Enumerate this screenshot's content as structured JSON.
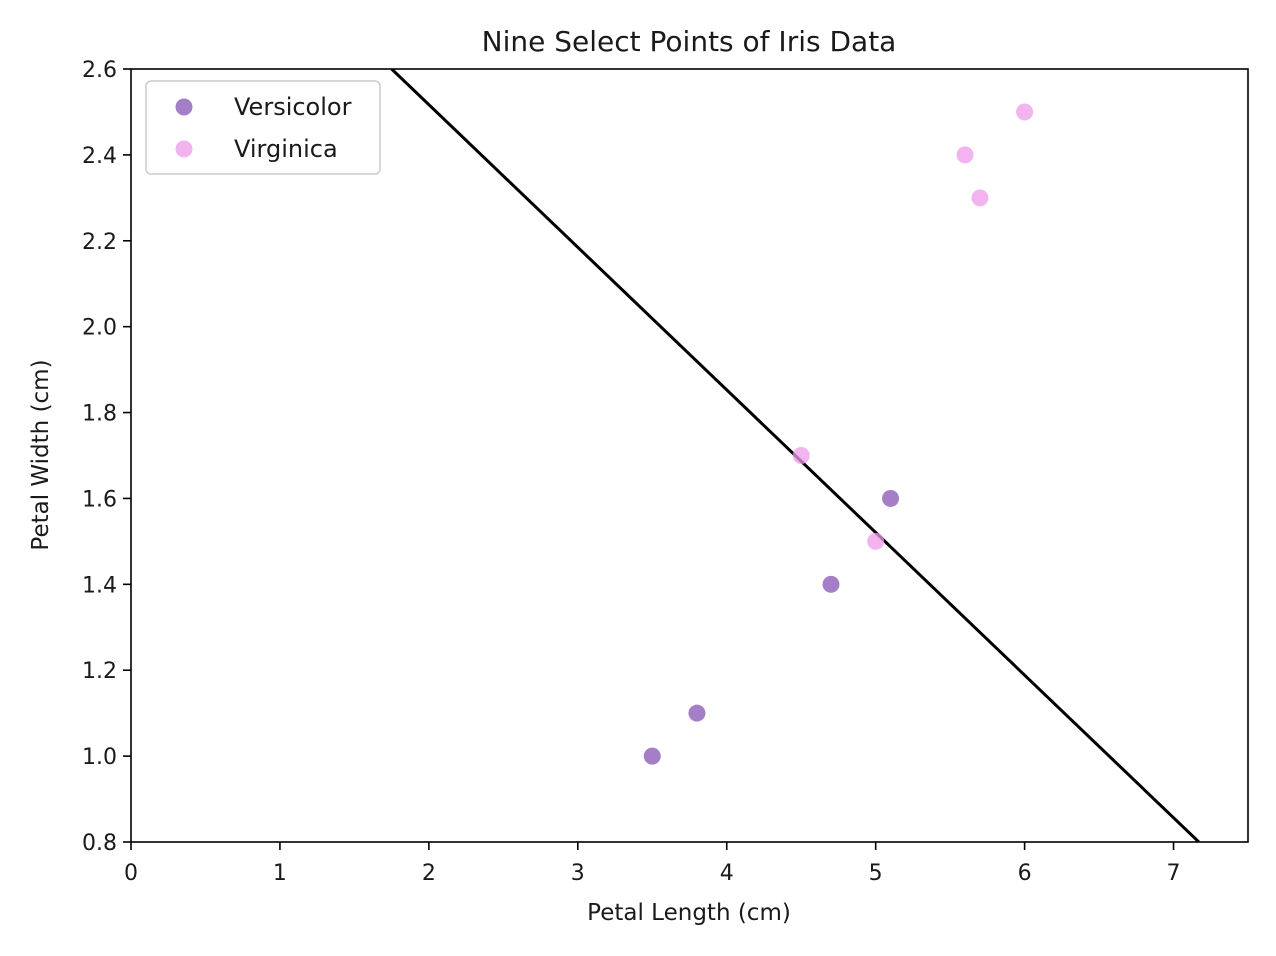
{
  "chart_data": {
    "type": "scatter",
    "title": "Nine Select Points of Iris Data",
    "xlabel": "Petal Length (cm)",
    "ylabel": "Petal Width (cm)",
    "xlim": [
      0,
      7.5
    ],
    "ylim": [
      0.8,
      2.6
    ],
    "xticks": [
      0,
      1,
      2,
      3,
      4,
      5,
      6,
      7
    ],
    "yticks": [
      "0.8",
      "1.0",
      "1.2",
      "1.4",
      "1.6",
      "1.8",
      "2.0",
      "2.2",
      "2.4",
      "2.6"
    ],
    "grid": false,
    "legend_position": "top-left",
    "series": [
      {
        "name": "Versicolor",
        "color": "#9467bd",
        "points": [
          [
            3.5,
            1.0
          ],
          [
            3.8,
            1.1
          ],
          [
            4.7,
            1.4
          ],
          [
            5.1,
            1.6
          ]
        ]
      },
      {
        "name": "Virginica",
        "color": "#ee9ae8",
        "points": [
          [
            4.5,
            1.7
          ],
          [
            5.0,
            1.5
          ],
          [
            5.6,
            2.4
          ],
          [
            5.7,
            2.3
          ],
          [
            6.0,
            2.5
          ]
        ]
      }
    ],
    "decision_line": {
      "color": "#000000",
      "points": [
        [
          1.75,
          2.6
        ],
        [
          7.17,
          0.8
        ]
      ]
    }
  }
}
